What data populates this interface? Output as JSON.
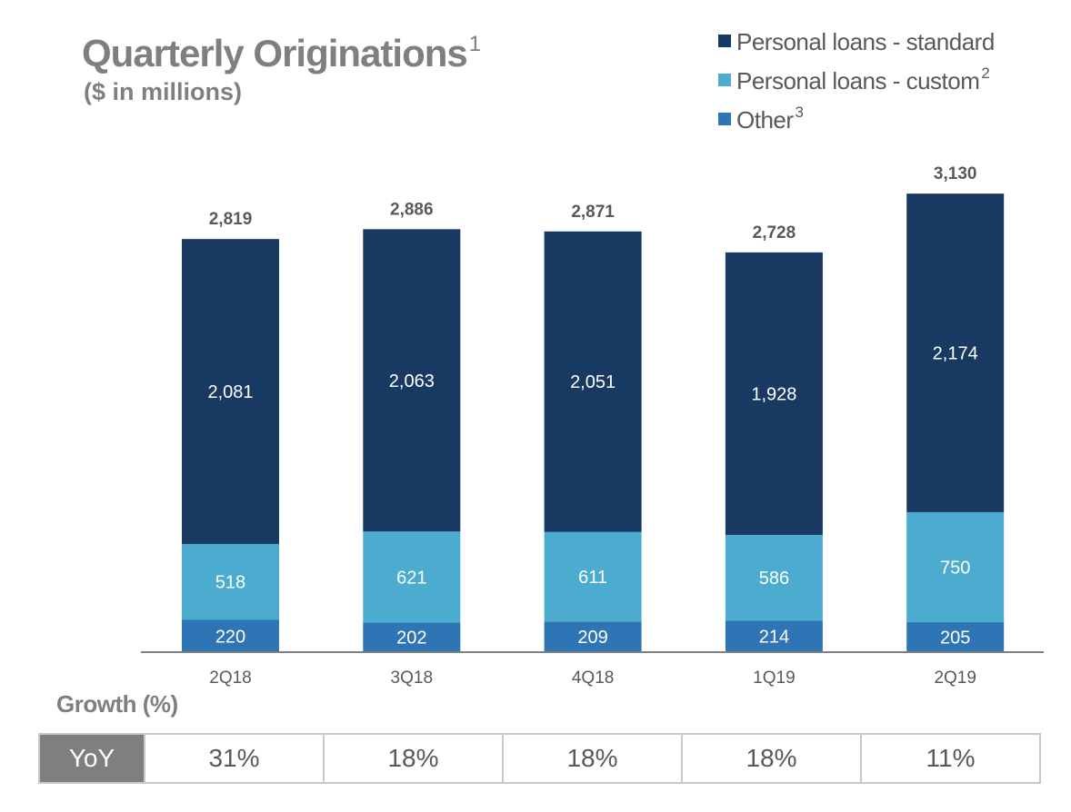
{
  "title": {
    "main": "Quarterly Originations",
    "main_sup": "1",
    "subtitle": "($ in millions)"
  },
  "legend": [
    {
      "label": "Personal loans - standard",
      "sup": "",
      "color": "#183a62"
    },
    {
      "label": "Personal loans - custom",
      "sup": "2",
      "color": "#4bacd0"
    },
    {
      "label": "Other",
      "sup": "3",
      "color": "#2e75b6"
    }
  ],
  "chart_data": {
    "type": "bar",
    "stacked": true,
    "title": "Quarterly Originations",
    "subtitle": "($ in millions)",
    "categories": [
      "2Q18",
      "3Q18",
      "4Q18",
      "1Q19",
      "2Q19"
    ],
    "series": [
      {
        "name": "Other",
        "color": "#2e75b6",
        "values": [
          220,
          202,
          209,
          214,
          205
        ]
      },
      {
        "name": "Personal loans - custom",
        "color": "#4bacd0",
        "values": [
          518,
          621,
          611,
          586,
          750
        ]
      },
      {
        "name": "Personal loans - standard",
        "color": "#183a62",
        "values": [
          2081,
          2063,
          2051,
          1928,
          2174
        ]
      }
    ],
    "totals": [
      2819,
      2886,
      2871,
      2728,
      3130
    ],
    "total_labels": [
      "2,819",
      "2,886",
      "2,871",
      "2,728",
      "3,130"
    ],
    "segment_labels": [
      [
        "220",
        "202",
        "209",
        "214",
        "205"
      ],
      [
        "518",
        "621",
        "611",
        "586",
        "750"
      ],
      [
        "2,081",
        "2,063",
        "2,051",
        "1,928",
        "2,174"
      ]
    ],
    "ylim": [
      0,
      3130
    ],
    "grid": false,
    "legend_position": "top-right"
  },
  "growth": {
    "title": "Growth (%)",
    "row_label": "YoY",
    "values": [
      "31%",
      "18%",
      "18%",
      "18%",
      "11%"
    ]
  }
}
